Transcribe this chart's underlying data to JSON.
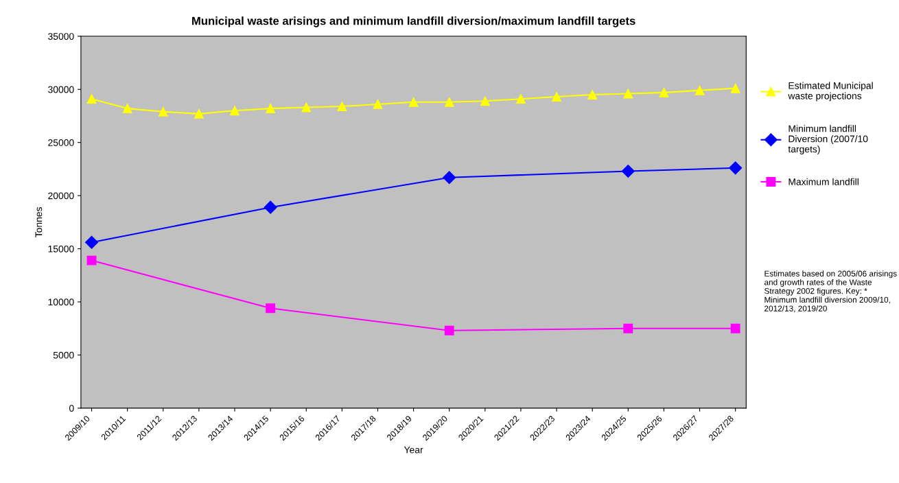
{
  "chart_data": {
    "type": "line",
    "title": "Municipal waste arisings and minimum landfill diversion/maximum landfill targets",
    "xlabel": "Year",
    "ylabel": "Tonnes",
    "categories": [
      "2009/10",
      "2010/11",
      "2011/12",
      "2012/13",
      "2013/14",
      "2014/15",
      "2015/16",
      "2016/17",
      "2017/18",
      "2018/19",
      "2019/20",
      "2020/21",
      "2021/22",
      "2022/23",
      "2023/24",
      "2024/25",
      "2025/26",
      "2026/27",
      "2027/28"
    ],
    "series": [
      {
        "name": "Estimated Municipal\nwaste projections",
        "color": "#ffff00",
        "marker": "triangle",
        "values": [
          29100,
          28200,
          27900,
          27700,
          28000,
          28200,
          28300,
          28400,
          28600,
          28800,
          28800,
          28900,
          29100,
          29300,
          29500,
          29600,
          29700,
          29900,
          30100
        ]
      },
      {
        "name": "Minimum landfill\nDiversion (2007/10\ntargets)",
        "color": "#0000ff",
        "marker": "diamond",
        "values": [
          15600,
          null,
          null,
          null,
          null,
          18900,
          null,
          null,
          null,
          null,
          21700,
          null,
          null,
          null,
          null,
          22300,
          null,
          null,
          22600
        ]
      },
      {
        "name": "Maximum landfill",
        "color": "#ff00ff",
        "marker": "square",
        "values": [
          13900,
          null,
          null,
          null,
          null,
          9400,
          null,
          null,
          null,
          null,
          7300,
          null,
          null,
          null,
          null,
          7500,
          null,
          null,
          7500
        ]
      }
    ],
    "ylim": [
      0,
      35000
    ],
    "yticks": [
      0,
      5000,
      10000,
      15000,
      20000,
      25000,
      30000,
      35000
    ],
    "grid": false,
    "legend": "right",
    "annotations": [
      "Estimates based on 2005/06 arisings and growth rates of the Waste Strategy 2002 figures. Key: * Minimum landfill diversion 2009/10, 2012/13, 2019/20"
    ]
  }
}
